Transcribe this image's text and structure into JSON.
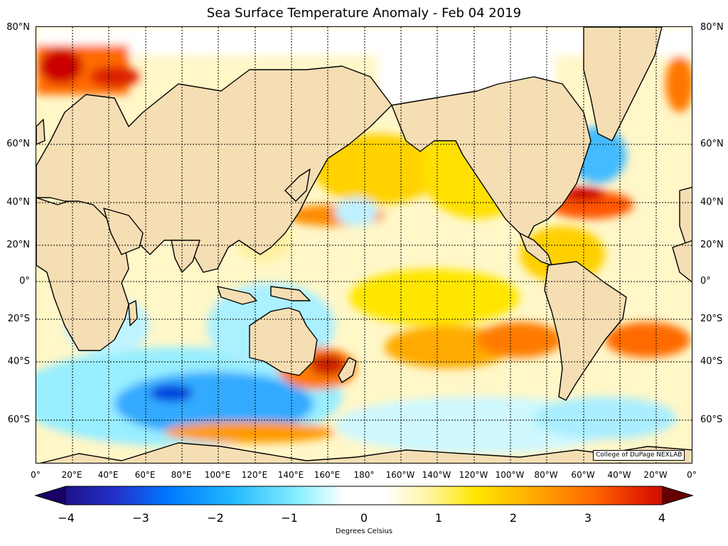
{
  "title": "Sea Surface Temperature Anomaly - Feb 04 2019",
  "credit": "College of DuPage NEXLAB",
  "lat_labels": [
    "80°N",
    "60°N",
    "40°N",
    "20°N",
    "0°",
    "20°S",
    "40°S",
    "60°S"
  ],
  "lon_labels": [
    "0°",
    "20°E",
    "40°E",
    "60°E",
    "80°E",
    "100°E",
    "120°E",
    "140°E",
    "160°E",
    "180°",
    "160°W",
    "140°W",
    "120°W",
    "100°W",
    "80°W",
    "60°W",
    "40°W",
    "20°W",
    "0°"
  ],
  "colorbar": {
    "ticks": [
      "−4",
      "−3",
      "−2",
      "−1",
      "0",
      "1",
      "2",
      "3",
      "4"
    ],
    "range": [
      -4,
      4
    ],
    "label": "Degrees Celsius",
    "colors": [
      "#1a0066",
      "#2233cc",
      "#0077ff",
      "#22b8ff",
      "#88f0ff",
      "#ffffff",
      "#ffffff",
      "#fff5a0",
      "#ffe600",
      "#ffb000",
      "#ff6600",
      "#e01a00",
      "#990000"
    ]
  },
  "colors": {
    "land": "#f5deb3",
    "coast": "#000000",
    "grid": "#000000"
  }
}
